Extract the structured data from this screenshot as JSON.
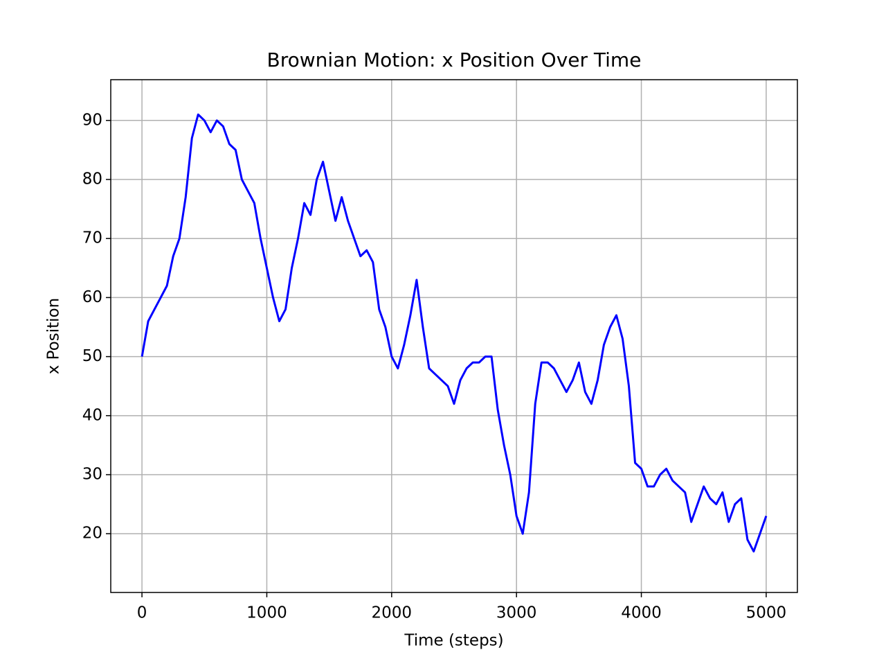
{
  "chart_data": {
    "type": "line",
    "title": "Brownian Motion: x Position Over Time",
    "xlabel": "Time (steps)",
    "ylabel": "x Position",
    "x": [
      0,
      50,
      100,
      150,
      200,
      250,
      300,
      350,
      400,
      450,
      500,
      550,
      600,
      650,
      700,
      750,
      800,
      850,
      900,
      950,
      1000,
      1050,
      1100,
      1150,
      1200,
      1250,
      1300,
      1350,
      1400,
      1450,
      1500,
      1550,
      1600,
      1650,
      1700,
      1750,
      1800,
      1850,
      1900,
      1950,
      2000,
      2050,
      2100,
      2150,
      2200,
      2250,
      2300,
      2350,
      2400,
      2450,
      2500,
      2550,
      2600,
      2650,
      2700,
      2750,
      2800,
      2850,
      2900,
      2950,
      3000,
      3050,
      3100,
      3150,
      3200,
      3250,
      3300,
      3350,
      3400,
      3450,
      3500,
      3550,
      3600,
      3650,
      3700,
      3750,
      3800,
      3850,
      3900,
      3950,
      4000,
      4050,
      4100,
      4150,
      4200,
      4250,
      4300,
      4350,
      4400,
      4450,
      4500,
      4550,
      4600,
      4650,
      4700,
      4750,
      4800,
      4850,
      4900,
      4950,
      5000
    ],
    "series": [
      {
        "color": "#0000ff",
        "values": [
          50,
          56,
          58,
          60,
          62,
          67,
          70,
          77,
          87,
          91,
          90,
          88,
          90,
          89,
          86,
          85,
          80,
          78,
          76,
          70,
          65,
          60,
          56,
          58,
          65,
          70,
          76,
          74,
          80,
          83,
          78,
          73,
          77,
          73,
          70,
          67,
          68,
          66,
          58,
          55,
          50,
          48,
          52,
          57,
          63,
          55,
          48,
          47,
          46,
          45,
          42,
          46,
          48,
          49,
          49,
          50,
          50,
          41,
          35,
          30,
          23,
          20,
          27,
          42,
          49,
          49,
          48,
          46,
          44,
          46,
          49,
          44,
          42,
          46,
          52,
          55,
          57,
          53,
          45,
          32,
          31,
          28,
          28,
          30,
          31,
          29,
          28,
          27,
          22,
          25,
          28,
          26,
          25,
          27,
          22,
          25,
          26,
          19,
          17,
          20,
          23
        ]
      }
    ],
    "xlim": [
      -250,
      5250
    ],
    "ylim": [
      10.05,
      96.9
    ],
    "xticks": [
      0,
      1000,
      2000,
      3000,
      4000,
      5000
    ],
    "yticks": [
      20,
      30,
      40,
      50,
      60,
      70,
      80,
      90
    ],
    "grid": true
  }
}
